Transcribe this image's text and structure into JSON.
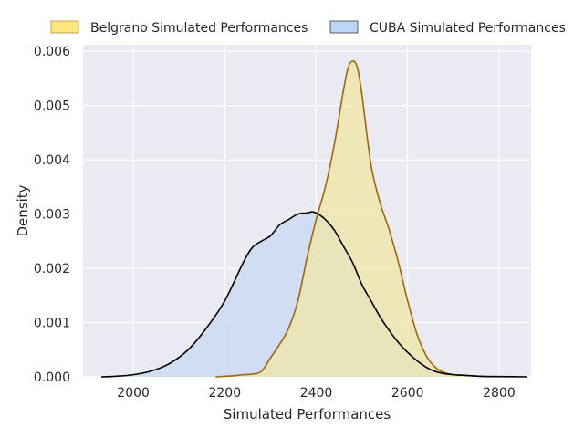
{
  "chart_data": {
    "type": "area",
    "title": "",
    "xlabel": "Simulated Performances",
    "ylabel": "Density",
    "xlim": [
      1890,
      2870
    ],
    "ylim": [
      0,
      0.00612
    ],
    "xticks": [
      2000,
      2200,
      2400,
      2600,
      2800
    ],
    "yticks": [
      0.0,
      0.001,
      0.002,
      0.003,
      0.004,
      0.005,
      0.006
    ],
    "ytick_labels": [
      "0.000",
      "0.001",
      "0.002",
      "0.003",
      "0.004",
      "0.005",
      "0.006"
    ],
    "grid": true,
    "background": "#eaeaf2",
    "legend_position": "top",
    "series": [
      {
        "name": "Belgrano Simulated Performances",
        "fill": "#f0e6a8",
        "legend_fill": "#ffe680",
        "stroke": "#a0660a",
        "x": [
          2180,
          2200,
          2220,
          2240,
          2260,
          2280,
          2300,
          2320,
          2340,
          2360,
          2380,
          2400,
          2420,
          2440,
          2460,
          2470,
          2480,
          2490,
          2500,
          2520,
          2540,
          2560,
          2580,
          2600,
          2620,
          2640,
          2660,
          2680,
          2700,
          2720,
          2740,
          2760,
          2780
        ],
        "y": [
          0.0,
          1e-05,
          2e-05,
          4e-05,
          5e-05,
          0.0001,
          0.00035,
          0.0006,
          0.0009,
          0.0014,
          0.0022,
          0.0029,
          0.0035,
          0.0043,
          0.0053,
          0.0057,
          0.00582,
          0.0057,
          0.0052,
          0.0039,
          0.0032,
          0.0027,
          0.0021,
          0.0014,
          0.0008,
          0.0004,
          0.00018,
          8e-05,
          4e-05,
          3e-05,
          2e-05,
          1e-05,
          0.0
        ]
      },
      {
        "name": "CUBA Simulated Performances",
        "fill": "#c8d9f3",
        "legend_fill": "#bcd5f5",
        "stroke": "#000000",
        "x": [
          1930,
          1960,
          2000,
          2040,
          2080,
          2120,
          2160,
          2200,
          2240,
          2260,
          2280,
          2300,
          2320,
          2340,
          2360,
          2380,
          2390,
          2400,
          2420,
          2440,
          2460,
          2480,
          2500,
          2520,
          2540,
          2560,
          2580,
          2600,
          2620,
          2640,
          2660,
          2680,
          2700,
          2720,
          2740,
          2760,
          2800,
          2860
        ],
        "y": [
          0.0,
          1e-05,
          4e-05,
          0.00011,
          0.00025,
          0.0005,
          0.0009,
          0.0014,
          0.0021,
          0.00238,
          0.0025,
          0.0026,
          0.0028,
          0.0029,
          0.003,
          0.00302,
          0.00304,
          0.00302,
          0.0029,
          0.0027,
          0.0024,
          0.0021,
          0.0017,
          0.0014,
          0.0011,
          0.00085,
          0.00063,
          0.00045,
          0.0003,
          0.00018,
          0.0001,
          6e-05,
          4e-05,
          3e-05,
          2e-05,
          1e-05,
          5e-06,
          0.0
        ]
      }
    ]
  }
}
